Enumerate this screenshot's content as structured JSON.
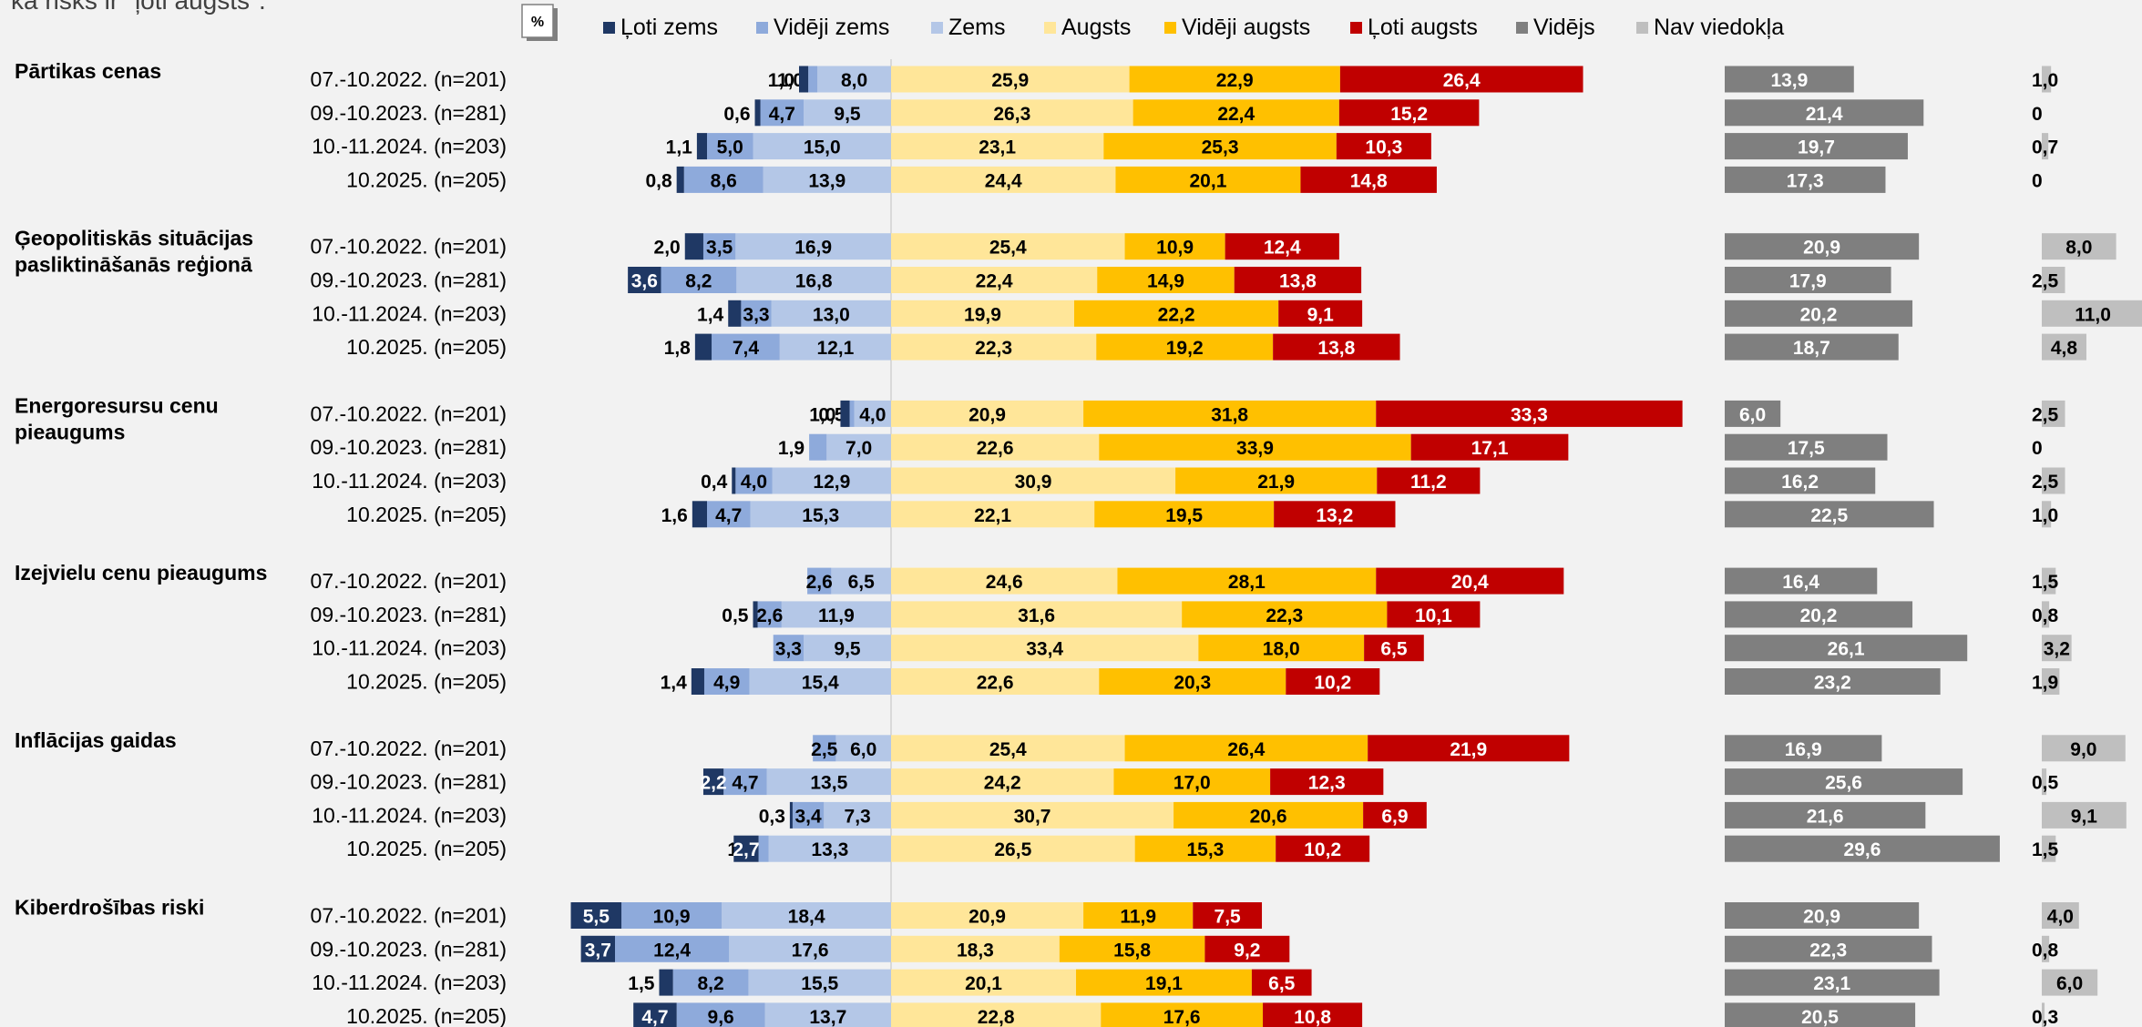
{
  "header": {
    "fragment": "ka risks ir \"ļoti augsts\".",
    "unit_badge": "%"
  },
  "colors": {
    "Ļoti zems": "#1f3864",
    "Vidēji zems": "#8eaadb",
    "Zems": "#b4c7e7",
    "Augsts": "#ffe699",
    "Vidēji augsts": "#ffc000",
    "Ļoti augsts": "#c00000",
    "Vidējs": "#7f7f7f",
    "Nav viedokļa": "#bfbfbf"
  },
  "chart_data": {
    "type": "bar",
    "subtype": "diverging stacked horizontal bar",
    "legend": [
      "Ļoti zems",
      "Vidēji zems",
      "Zems",
      "Augsts",
      "Vidēji augsts",
      "Ļoti augsts",
      "Vidējs",
      "Nav viedokļa"
    ],
    "legend_position": "top",
    "groups": [
      {
        "name": "Pārtikas cenas",
        "rows": [
          {
            "period": "07.-10.2022. (n=201)",
            "Ļoti zems": "1,0",
            "Vidēji zems": "1,0",
            "Zems": "8,0",
            "Augsts": "25,9",
            "Vidēji augsts": "22,9",
            "Ļoti augsts": "26,4",
            "Vidējs": "13,9",
            "Nav viedokļa": "1,0"
          },
          {
            "period": "09.-10.2023. (n=281)",
            "Ļoti zems": "0,6",
            "Vidēji zems": "4,7",
            "Zems": "9,5",
            "Augsts": "26,3",
            "Vidēji augsts": "22,4",
            "Ļoti augsts": "15,2",
            "Vidējs": "21,4",
            "Nav viedokļa": "0"
          },
          {
            "period": "10.-11.2024. (n=203)",
            "Ļoti zems": "1,1",
            "Vidēji zems": "5,0",
            "Zems": "15,0",
            "Augsts": "23,1",
            "Vidēji augsts": "25,3",
            "Ļoti augsts": "10,3",
            "Vidējs": "19,7",
            "Nav viedokļa": "0,7"
          },
          {
            "period": "10.2025. (n=205)",
            "Ļoti zems": "0,8",
            "Vidēji zems": "8,6",
            "Zems": "13,9",
            "Augsts": "24,4",
            "Vidēji augsts": "20,1",
            "Ļoti augsts": "14,8",
            "Vidējs": "17,3",
            "Nav viedokļa": "0"
          }
        ]
      },
      {
        "name": [
          "Ģeopolitiskās situācijas",
          "pasliktināšanās reģionā"
        ],
        "rows": [
          {
            "period": "07.-10.2022. (n=201)",
            "Ļoti zems": "2,0",
            "Vidēji zems": "3,5",
            "Zems": "16,9",
            "Augsts": "25,4",
            "Vidēji augsts": "10,9",
            "Ļoti augsts": "12,4",
            "Vidējs": "20,9",
            "Nav viedokļa": "8,0"
          },
          {
            "period": "09.-10.2023. (n=281)",
            "Ļoti zems": "3,6",
            "Vidēji zems": "8,2",
            "Zems": "16,8",
            "Augsts": "22,4",
            "Vidēji augsts": "14,9",
            "Ļoti augsts": "13,8",
            "Vidējs": "17,9",
            "Nav viedokļa": "2,5"
          },
          {
            "period": "10.-11.2024. (n=203)",
            "Ļoti zems": "1,4",
            "Vidēji zems": "3,3",
            "Zems": "13,0",
            "Augsts": "19,9",
            "Vidēji augsts": "22,2",
            "Ļoti augsts": "9,1",
            "Vidējs": "20,2",
            "Nav viedokļa": "11,0"
          },
          {
            "period": "10.2025. (n=205)",
            "Ļoti zems": "1,8",
            "Vidēji zems": "7,4",
            "Zems": "12,1",
            "Augsts": "22,3",
            "Vidēji augsts": "19,2",
            "Ļoti augsts": "13,8",
            "Vidējs": "18,7",
            "Nav viedokļa": "4,8"
          }
        ]
      },
      {
        "name": [
          "Energoresursu cenu",
          "pieaugums"
        ],
        "rows": [
          {
            "period": "07.-10.2022. (n=201)",
            "Ļoti zems": "1,0",
            "Vidēji zems": "0,5",
            "Zems": "4,0",
            "Augsts": "20,9",
            "Vidēji augsts": "31,8",
            "Ļoti augsts": "33,3",
            "Vidējs": "6,0",
            "Nav viedokļa": "2,5"
          },
          {
            "period": "09.-10.2023. (n=281)",
            "Ļoti zems": null,
            "Vidēji zems": "1,9",
            "Zems": "7,0",
            "Augsts": "22,6",
            "Vidēji augsts": "33,9",
            "Ļoti augsts": "17,1",
            "Vidējs": "17,5",
            "Nav viedokļa": "0"
          },
          {
            "period": "10.-11.2024. (n=203)",
            "Ļoti zems": "0,4",
            "Vidēji zems": "4,0",
            "Zems": "12,9",
            "Augsts": "30,9",
            "Vidēji augsts": "21,9",
            "Ļoti augsts": "11,2",
            "Vidējs": "16,2",
            "Nav viedokļa": "2,5"
          },
          {
            "period": "10.2025. (n=205)",
            "Ļoti zems": "1,6",
            "Vidēji zems": "4,7",
            "Zems": "15,3",
            "Augsts": "22,1",
            "Vidēji augsts": "19,5",
            "Ļoti augsts": "13,2",
            "Vidējs": "22,5",
            "Nav viedokļa": "1,0"
          }
        ]
      },
      {
        "name": [
          "Izejvielu cenu pieaugums"
        ],
        "rows": [
          {
            "period": "07.-10.2022. (n=201)",
            "Ļoti zems": null,
            "Vidēji zems": "2,6",
            "Zems": "6,5",
            "Augsts": "24,6",
            "Vidēji augsts": "28,1",
            "Ļoti augsts": "20,4",
            "Vidējs": "16,4",
            "Nav viedokļa": "1,5"
          },
          {
            "period": "09.-10.2023. (n=281)",
            "Ļoti zems": "0,5",
            "Vidēji zems": "2,6",
            "Zems": "11,9",
            "Augsts": "31,6",
            "Vidēji augsts": "22,3",
            "Ļoti augsts": "10,1",
            "Vidējs": "20,2",
            "Nav viedokļa": "0,8"
          },
          {
            "period": "10.-11.2024. (n=203)",
            "Ļoti zems": null,
            "Vidēji zems": "3,3",
            "Zems": "9,5",
            "Augsts": "33,4",
            "Vidēji augsts": "18,0",
            "Ļoti augsts": "6,5",
            "Vidējs": "26,1",
            "Nav viedokļa": "3,2"
          },
          {
            "period": "10.2025. (n=205)",
            "Ļoti zems": "1,4",
            "Vidēji zems": "4,9",
            "Zems": "15,4",
            "Augsts": "22,6",
            "Vidēji augsts": "20,3",
            "Ļoti augsts": "10,2",
            "Vidējs": "23,2",
            "Nav viedokļa": "1,9"
          }
        ]
      },
      {
        "name": [
          "Inflācijas gaidas"
        ],
        "rows": [
          {
            "period": "07.-10.2022. (n=201)",
            "Ļoti zems": null,
            "Vidēji zems": "2,5",
            "Zems": "6,0",
            "Augsts": "25,4",
            "Vidēji augsts": "26,4",
            "Ļoti augsts": "21,9",
            "Vidējs": "16,9",
            "Nav viedokļa": "9,0"
          },
          {
            "period": "09.-10.2023. (n=281)",
            "Ļoti zems": "2,2",
            "Vidēji zems": "4,7",
            "Zems": "13,5",
            "Augsts": "24,2",
            "Vidēji augsts": "17,0",
            "Ļoti augsts": "12,3",
            "Vidējs": "25,6",
            "Nav viedokļa": "0,5"
          },
          {
            "period": "10.-11.2024. (n=203)",
            "Ļoti zems": "0,3",
            "Vidēji zems": "3,4",
            "Zems": "7,3",
            "Augsts": "30,7",
            "Vidēji augsts": "20,6",
            "Ļoti augsts": "6,9",
            "Vidējs": "21,6",
            "Nav viedokļa": "9,1"
          },
          {
            "period": "10.2025. (n=205)",
            "Ļoti zems": "2,7",
            "Vidēji zems": "1,1",
            "Zems": "13,3",
            "Augsts": "26,5",
            "Vidēji augsts": "15,3",
            "Ļoti augsts": "10,2",
            "Vidējs": "29,6",
            "Nav viedokļa": "1,5"
          }
        ]
      },
      {
        "name": [
          "Kiberdrošības riski"
        ],
        "rows": [
          {
            "period": "07.-10.2022. (n=201)",
            "Ļoti zems": "5,5",
            "Vidēji zems": "10,9",
            "Zems": "18,4",
            "Augsts": "20,9",
            "Vidēji augsts": "11,9",
            "Ļoti augsts": "7,5",
            "Vidējs": "20,9",
            "Nav viedokļa": "4,0"
          },
          {
            "period": "09.-10.2023. (n=281)",
            "Ļoti zems": "3,7",
            "Vidēji zems": "12,4",
            "Zems": "17,6",
            "Augsts": "18,3",
            "Vidēji augsts": "15,8",
            "Ļoti augsts": "9,2",
            "Vidējs": "22,3",
            "Nav viedokļa": "0,8"
          },
          {
            "period": "10.-11.2024. (n=203)",
            "Ļoti zems": "1,5",
            "Vidēji zems": "8,2",
            "Zems": "15,5",
            "Augsts": "20,1",
            "Vidēji augsts": "19,1",
            "Ļoti augsts": "6,5",
            "Vidējs": "23,1",
            "Nav viedokļa": "6,0"
          },
          {
            "period": "10.2025. (n=205)",
            "Ļoti zems": "4,7",
            "Vidēji zems": "9,6",
            "Zems": "13,7",
            "Augsts": "22,8",
            "Vidēji augsts": "17,6",
            "Ļoti augsts": "10,8",
            "Vidējs": "20,5",
            "Nav viedokļa": "0,3"
          }
        ]
      }
    ]
  }
}
